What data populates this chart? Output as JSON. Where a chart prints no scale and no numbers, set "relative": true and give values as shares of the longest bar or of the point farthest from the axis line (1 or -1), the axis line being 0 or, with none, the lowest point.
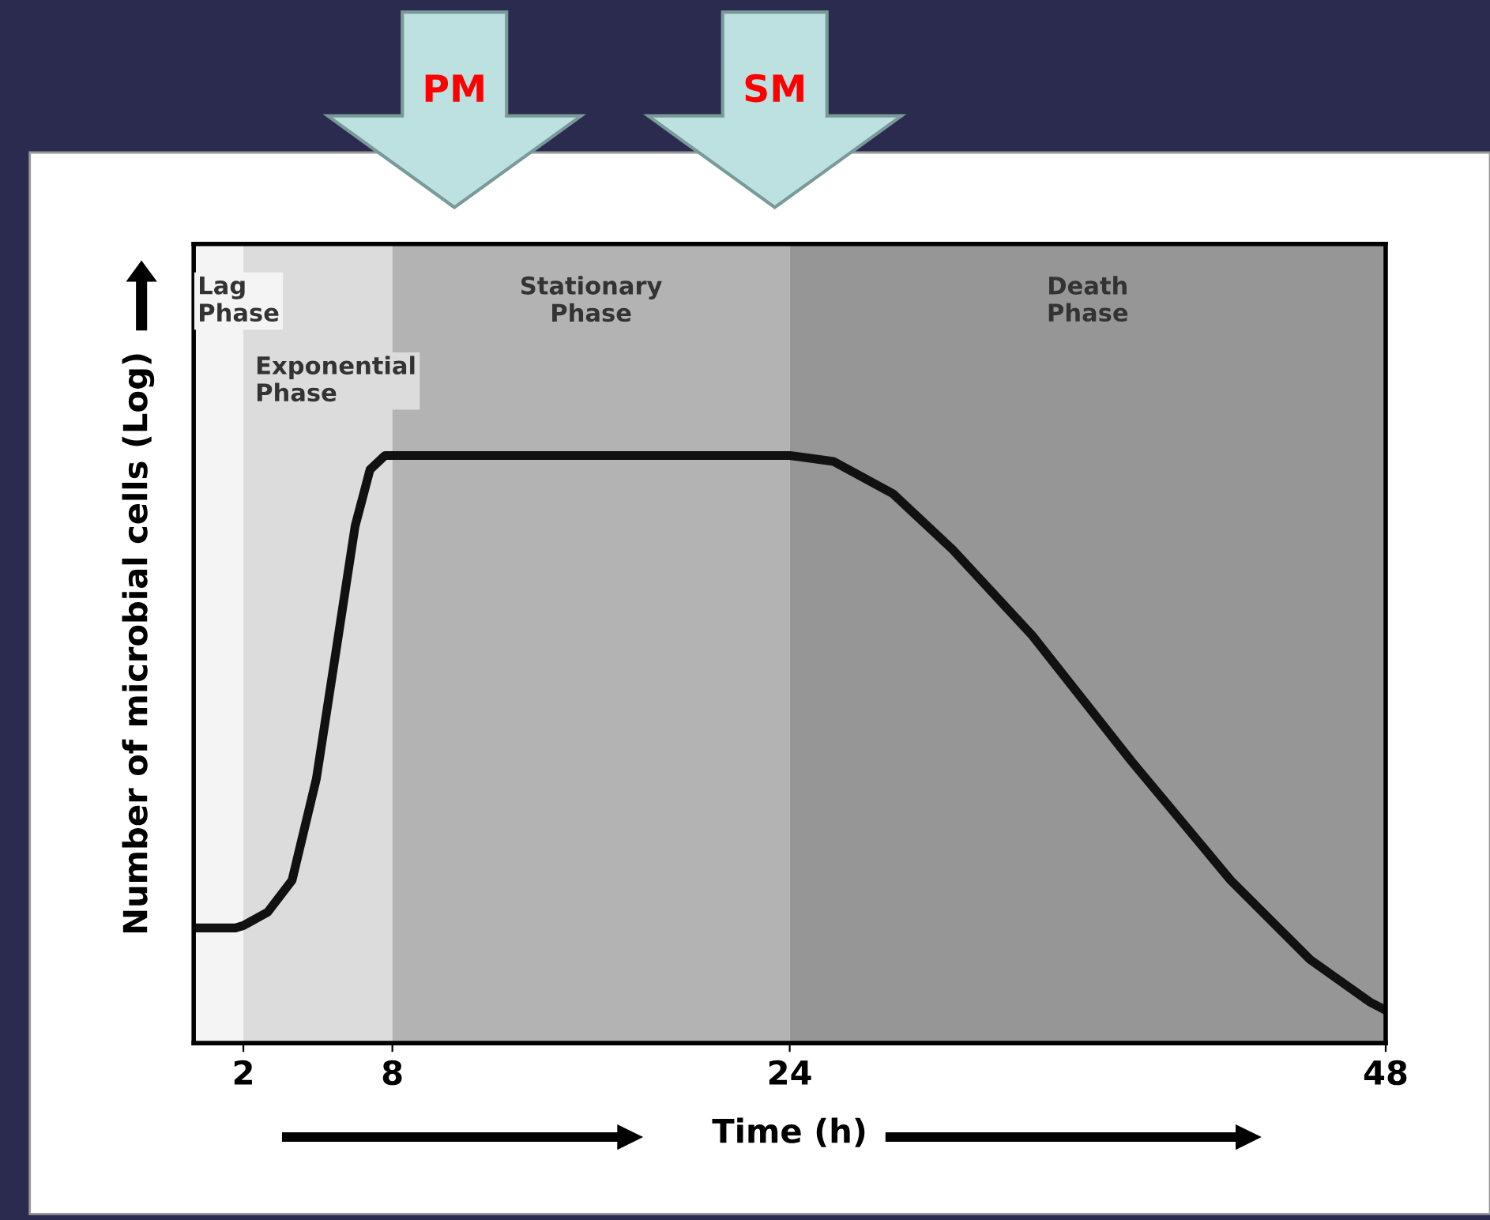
{
  "chart_data": {
    "type": "line",
    "relative": true,
    "xlabel": "Time (h)",
    "ylabel": "Number of microbial cells (Log)",
    "x": [
      0,
      1.68,
      2,
      2.98,
      3.96,
      4.94,
      5.73,
      6.5,
      7.1,
      7.7,
      8,
      24,
      25.76,
      28.16,
      30.56,
      33.76,
      37.76,
      41.76,
      44.96,
      47.36,
      48
    ],
    "series": [
      {
        "color": "#111111",
        "values": [
          0.196,
          0.196,
          0.2,
          0.223,
          0.277,
          0.45,
          0.667,
          0.88,
          0.976,
          1,
          1,
          1,
          0.99,
          0.935,
          0.84,
          0.694,
          0.48,
          0.277,
          0.142,
          0.07,
          0.056
        ]
      }
    ],
    "xlim": [
      0,
      48
    ],
    "xticks": [
      2,
      8,
      24,
      48
    ],
    "tick_labels": "x",
    "grid": false,
    "legend": false,
    "marker": "none",
    "line_style": "solid",
    "bands": [
      {
        "axis": "x",
        "from": 0,
        "to": 2,
        "label": "Lag\nPhase",
        "color": "#f4f4f4"
      },
      {
        "axis": "x",
        "from": 2,
        "to": 8,
        "label": "Exponential\nPhase",
        "color": "#dcdcdc"
      },
      {
        "axis": "x",
        "from": 8,
        "to": 24,
        "label": "Stationary\nPhase",
        "color": "#b3b3b3"
      },
      {
        "axis": "x",
        "from": 24,
        "to": 48,
        "label": "Death\nPhase",
        "color": "#969696"
      }
    ],
    "annotations": [
      "PM",
      "SM"
    ]
  }
}
